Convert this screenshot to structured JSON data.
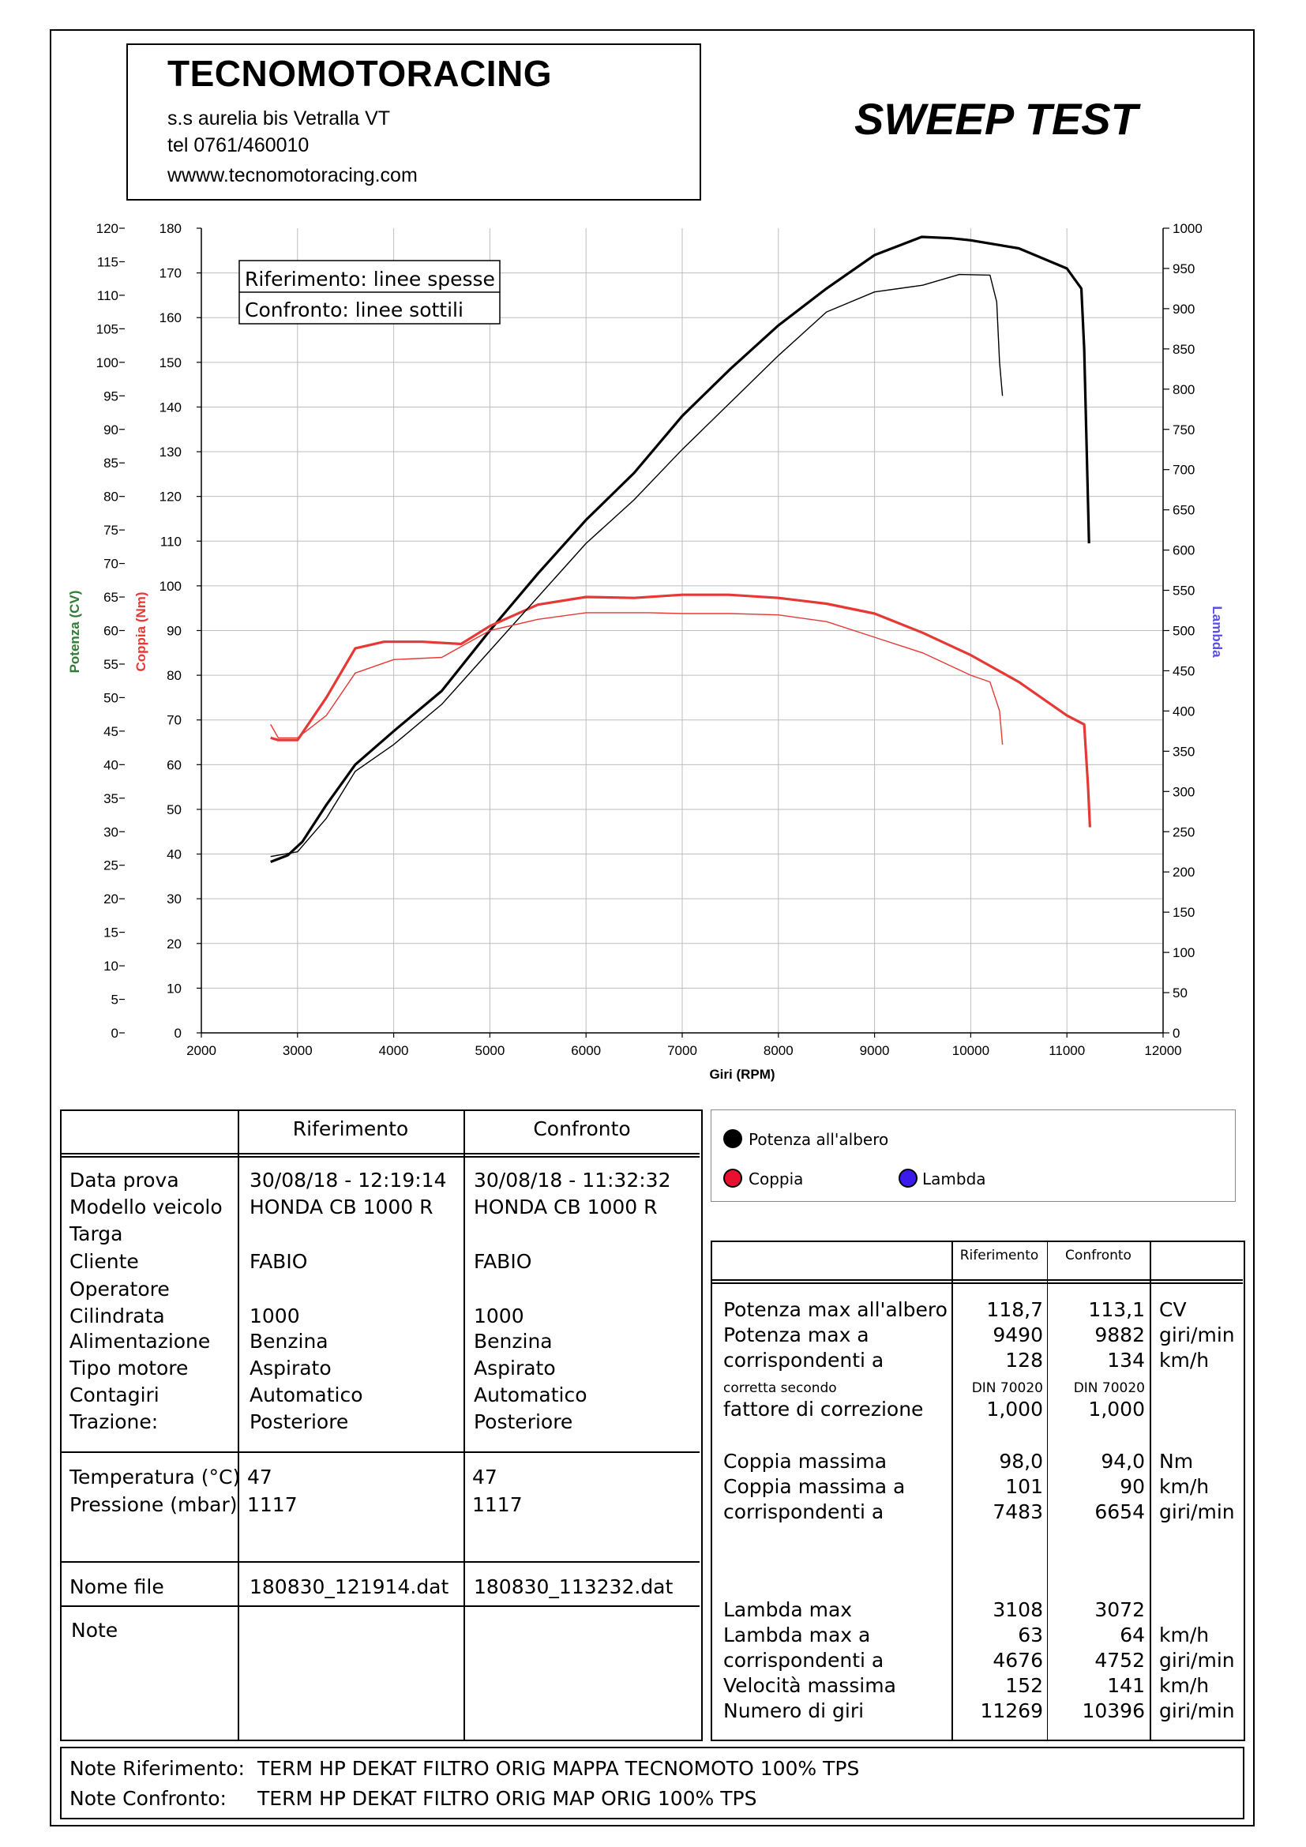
{
  "header": {
    "company": "TECNOMOTORACING",
    "address": "s.s aurelia bis  Vetralla  VT",
    "phone": "tel 0761/460010",
    "website": "wwww.tecnomotoracing.com",
    "test_title": "SWEEP TEST"
  },
  "chart_data": {
    "type": "line",
    "xlabel": "Giri (RPM)",
    "xlim": [
      2000,
      12000
    ],
    "x_ticks": [
      "2000",
      "3000",
      "4000",
      "5000",
      "6000",
      "7000",
      "8000",
      "9000",
      "10000",
      "11000",
      "12000"
    ],
    "y_axes": [
      {
        "label": "Potenza (CV)",
        "color": "#2e7d32",
        "ylim": [
          0,
          120
        ],
        "ticks": [
          "0",
          "5",
          "10",
          "15",
          "20",
          "25",
          "30",
          "35",
          "40",
          "45",
          "50",
          "55",
          "60",
          "65",
          "70",
          "75",
          "80",
          "85",
          "90",
          "95",
          "100",
          "105",
          "110",
          "115",
          "120"
        ]
      },
      {
        "label": "Coppia (Nm)",
        "color": "#e53935",
        "ylim": [
          0,
          180
        ],
        "ticks": [
          "0",
          "10",
          "20",
          "30",
          "40",
          "50",
          "60",
          "70",
          "80",
          "90",
          "100",
          "110",
          "120",
          "130",
          "140",
          "150",
          "160",
          "170",
          "180"
        ]
      },
      {
        "label": "Lambda",
        "color": "#5b50e0",
        "ylim": [
          0,
          1000
        ],
        "ticks": [
          "0",
          "50",
          "100",
          "150",
          "200",
          "250",
          "300",
          "350",
          "400",
          "450",
          "500",
          "550",
          "600",
          "650",
          "700",
          "750",
          "800",
          "850",
          "900",
          "950",
          "1000"
        ]
      }
    ],
    "grid": true,
    "legend_note": [
      "Riferimento: linee spesse",
      "Confronto: linee sottili"
    ],
    "series": [
      {
        "name": "Potenza all'albero",
        "variant": "Riferimento",
        "axis": 0,
        "color": "#000000",
        "width": 3.2,
        "x": [
          2720,
          2900,
          3050,
          3300,
          3600,
          4000,
          4500,
          5000,
          5500,
          6000,
          6500,
          7000,
          7500,
          8000,
          8500,
          9000,
          9490,
          9800,
          10000,
          10500,
          11000,
          11150,
          11180,
          11230
        ],
        "y": [
          25.5,
          26.5,
          28.5,
          34,
          40,
          45,
          51,
          60,
          68.5,
          76.5,
          83.5,
          92,
          99,
          105.5,
          111,
          116,
          118.7,
          118.5,
          118.2,
          117,
          114,
          111,
          102,
          73
        ]
      },
      {
        "name": "Coppia",
        "variant": "Riferimento",
        "axis": 1,
        "color": "#e53935",
        "width": 3.2,
        "x": [
          2720,
          2800,
          3000,
          3300,
          3600,
          3900,
          4300,
          4700,
          5000,
          5500,
          6000,
          6500,
          7000,
          7483,
          8000,
          8500,
          9000,
          9500,
          10000,
          10500,
          11000,
          11180,
          11220,
          11240
        ],
        "y": [
          66,
          65.5,
          65.5,
          75,
          86,
          87.5,
          87.5,
          87,
          91,
          95.8,
          97.5,
          97.3,
          98,
          98,
          97.3,
          96,
          93.8,
          89.5,
          84.5,
          78.5,
          71,
          69,
          55,
          46
        ]
      },
      {
        "name": "Potenza all'albero",
        "variant": "Confronto",
        "axis": 0,
        "color": "#000000",
        "width": 1.4,
        "x": [
          2720,
          3000,
          3300,
          3600,
          4000,
          4500,
          5000,
          5500,
          6000,
          6500,
          7000,
          7500,
          8000,
          8500,
          9000,
          9500,
          9882,
          10200,
          10270,
          10300,
          10330
        ],
        "y": [
          26.3,
          27,
          32,
          39,
          43,
          49,
          57,
          65,
          73,
          79.5,
          87,
          94,
          101,
          107.5,
          110.5,
          111.5,
          113.1,
          113,
          109,
          100,
          95
        ]
      },
      {
        "name": "Coppia",
        "variant": "Confronto",
        "axis": 1,
        "color": "#e53935",
        "width": 1.4,
        "x": [
          2720,
          2800,
          3000,
          3300,
          3600,
          4000,
          4500,
          5000,
          5500,
          6000,
          6654,
          7000,
          7500,
          8000,
          8500,
          9000,
          9500,
          10000,
          10200,
          10300,
          10330
        ],
        "y": [
          69,
          66,
          66,
          71,
          80.5,
          83.5,
          84,
          90,
          92.5,
          94,
          94,
          93.8,
          93.8,
          93.5,
          92,
          88.5,
          85,
          80,
          78.5,
          72,
          64.5
        ]
      }
    ]
  },
  "legend": {
    "power": "Potenza all'albero",
    "torque": "Coppia",
    "lambda": "Lambda",
    "power_color": "#000000",
    "torque_color": "#e8102e",
    "lambda_color": "#3a1bea"
  },
  "info_table": {
    "col_ref": "Riferimento",
    "col_cmp": "Confronto",
    "labels": [
      "Data prova",
      "Modello veicolo",
      "Targa",
      "Cliente",
      "Operatore",
      "Cilindrata",
      "Alimentazione",
      "Tipo motore",
      "Contagiri",
      "Trazione:"
    ],
    "ref_values": [
      "30/08/18 - 12:19:14",
      "HONDA CB 1000 R",
      "",
      "FABIO",
      "",
      "1000",
      "Benzina",
      "Aspirato",
      "Automatico",
      "Posteriore"
    ],
    "cmp_values": [
      "30/08/18 - 11:32:32",
      "HONDA CB 1000 R",
      "",
      "FABIO",
      "",
      "1000",
      "Benzina",
      "Aspirato",
      "Automatico",
      "Posteriore"
    ],
    "temp_label": "Temperatura (°C)",
    "press_label": "Pressione (mbar)",
    "temp_ref": "47",
    "temp_cmp": "47",
    "press_ref": "1117",
    "press_cmp": "1117",
    "file_label": "Nome file",
    "file_ref": "180830_121914.dat",
    "file_cmp": "180830_113232.dat",
    "note_label": "Note"
  },
  "results_table": {
    "col_ref": "Riferimento",
    "col_cmp": "Confronto",
    "rows": [
      {
        "label": "Potenza max all'albero",
        "ref": "118,7",
        "cmp": "113,1",
        "unit": "CV"
      },
      {
        "label": "Potenza max a",
        "ref": "9490",
        "cmp": "9882",
        "unit": "giri/min"
      },
      {
        "label": "corrispondenti a",
        "ref": "128",
        "cmp": "134",
        "unit": "km/h"
      },
      {
        "label": "corretta secondo",
        "ref": "DIN 70020",
        "cmp": "DIN 70020",
        "unit": ""
      },
      {
        "label": "fattore di correzione",
        "ref": "1,000",
        "cmp": "1,000",
        "unit": ""
      },
      {
        "label": "Coppia massima",
        "ref": "98,0",
        "cmp": "94,0",
        "unit": "Nm"
      },
      {
        "label": "Coppia massima a",
        "ref": "101",
        "cmp": "90",
        "unit": "km/h"
      },
      {
        "label": "corrispondenti a",
        "ref": "7483",
        "cmp": "6654",
        "unit": "giri/min"
      },
      {
        "label": "Lambda max",
        "ref": "3108",
        "cmp": "3072",
        "unit": ""
      },
      {
        "label": "Lambda max a",
        "ref": "63",
        "cmp": "64",
        "unit": "km/h"
      },
      {
        "label": "corrispondenti a",
        "ref": "4676",
        "cmp": "4752",
        "unit": "giri/min"
      },
      {
        "label": "Velocità massima",
        "ref": "152",
        "cmp": "141",
        "unit": "km/h"
      },
      {
        "label": "Numero di giri",
        "ref": "11269",
        "cmp": "10396",
        "unit": "giri/min"
      }
    ]
  },
  "notes": {
    "ref_label": "Note Riferimento:",
    "ref_text": "TERM HP DEKAT FILTRO ORIG MAPPA TECNOMOTO 100% TPS",
    "cmp_label": "Note Confronto:",
    "cmp_text": "TERM HP DEKAT  FILTRO ORIG MAP ORIG 100% TPS"
  }
}
